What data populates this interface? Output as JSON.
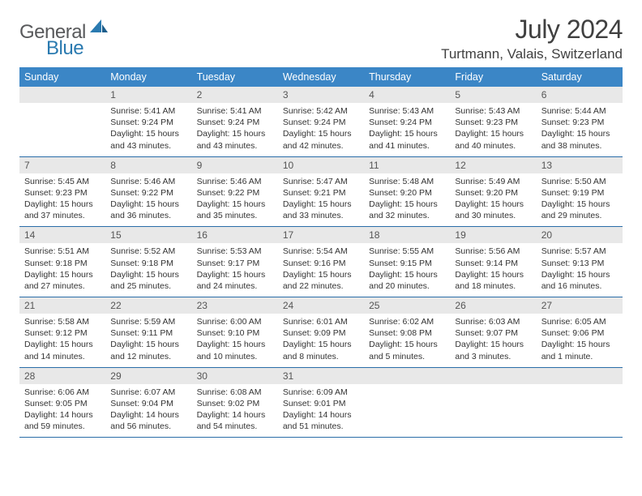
{
  "brand": {
    "part1": "General",
    "part2": "Blue"
  },
  "title": "July 2024",
  "location": "Turtmann, Valais, Switzerland",
  "colors": {
    "header_bg": "#3b86c6",
    "header_text": "#ffffff",
    "daynum_bg": "#e8e8e8",
    "border": "#2a6da8",
    "logo_gray": "#58595b",
    "logo_blue": "#2a7ab0",
    "page_bg": "#ffffff",
    "text": "#333333"
  },
  "weekdays": [
    "Sunday",
    "Monday",
    "Tuesday",
    "Wednesday",
    "Thursday",
    "Friday",
    "Saturday"
  ],
  "weeks": [
    [
      null,
      {
        "n": "1",
        "sr": "Sunrise: 5:41 AM",
        "ss": "Sunset: 9:24 PM",
        "dl": "Daylight: 15 hours and 43 minutes."
      },
      {
        "n": "2",
        "sr": "Sunrise: 5:41 AM",
        "ss": "Sunset: 9:24 PM",
        "dl": "Daylight: 15 hours and 43 minutes."
      },
      {
        "n": "3",
        "sr": "Sunrise: 5:42 AM",
        "ss": "Sunset: 9:24 PM",
        "dl": "Daylight: 15 hours and 42 minutes."
      },
      {
        "n": "4",
        "sr": "Sunrise: 5:43 AM",
        "ss": "Sunset: 9:24 PM",
        "dl": "Daylight: 15 hours and 41 minutes."
      },
      {
        "n": "5",
        "sr": "Sunrise: 5:43 AM",
        "ss": "Sunset: 9:23 PM",
        "dl": "Daylight: 15 hours and 40 minutes."
      },
      {
        "n": "6",
        "sr": "Sunrise: 5:44 AM",
        "ss": "Sunset: 9:23 PM",
        "dl": "Daylight: 15 hours and 38 minutes."
      }
    ],
    [
      {
        "n": "7",
        "sr": "Sunrise: 5:45 AM",
        "ss": "Sunset: 9:23 PM",
        "dl": "Daylight: 15 hours and 37 minutes."
      },
      {
        "n": "8",
        "sr": "Sunrise: 5:46 AM",
        "ss": "Sunset: 9:22 PM",
        "dl": "Daylight: 15 hours and 36 minutes."
      },
      {
        "n": "9",
        "sr": "Sunrise: 5:46 AM",
        "ss": "Sunset: 9:22 PM",
        "dl": "Daylight: 15 hours and 35 minutes."
      },
      {
        "n": "10",
        "sr": "Sunrise: 5:47 AM",
        "ss": "Sunset: 9:21 PM",
        "dl": "Daylight: 15 hours and 33 minutes."
      },
      {
        "n": "11",
        "sr": "Sunrise: 5:48 AM",
        "ss": "Sunset: 9:20 PM",
        "dl": "Daylight: 15 hours and 32 minutes."
      },
      {
        "n": "12",
        "sr": "Sunrise: 5:49 AM",
        "ss": "Sunset: 9:20 PM",
        "dl": "Daylight: 15 hours and 30 minutes."
      },
      {
        "n": "13",
        "sr": "Sunrise: 5:50 AM",
        "ss": "Sunset: 9:19 PM",
        "dl": "Daylight: 15 hours and 29 minutes."
      }
    ],
    [
      {
        "n": "14",
        "sr": "Sunrise: 5:51 AM",
        "ss": "Sunset: 9:18 PM",
        "dl": "Daylight: 15 hours and 27 minutes."
      },
      {
        "n": "15",
        "sr": "Sunrise: 5:52 AM",
        "ss": "Sunset: 9:18 PM",
        "dl": "Daylight: 15 hours and 25 minutes."
      },
      {
        "n": "16",
        "sr": "Sunrise: 5:53 AM",
        "ss": "Sunset: 9:17 PM",
        "dl": "Daylight: 15 hours and 24 minutes."
      },
      {
        "n": "17",
        "sr": "Sunrise: 5:54 AM",
        "ss": "Sunset: 9:16 PM",
        "dl": "Daylight: 15 hours and 22 minutes."
      },
      {
        "n": "18",
        "sr": "Sunrise: 5:55 AM",
        "ss": "Sunset: 9:15 PM",
        "dl": "Daylight: 15 hours and 20 minutes."
      },
      {
        "n": "19",
        "sr": "Sunrise: 5:56 AM",
        "ss": "Sunset: 9:14 PM",
        "dl": "Daylight: 15 hours and 18 minutes."
      },
      {
        "n": "20",
        "sr": "Sunrise: 5:57 AM",
        "ss": "Sunset: 9:13 PM",
        "dl": "Daylight: 15 hours and 16 minutes."
      }
    ],
    [
      {
        "n": "21",
        "sr": "Sunrise: 5:58 AM",
        "ss": "Sunset: 9:12 PM",
        "dl": "Daylight: 15 hours and 14 minutes."
      },
      {
        "n": "22",
        "sr": "Sunrise: 5:59 AM",
        "ss": "Sunset: 9:11 PM",
        "dl": "Daylight: 15 hours and 12 minutes."
      },
      {
        "n": "23",
        "sr": "Sunrise: 6:00 AM",
        "ss": "Sunset: 9:10 PM",
        "dl": "Daylight: 15 hours and 10 minutes."
      },
      {
        "n": "24",
        "sr": "Sunrise: 6:01 AM",
        "ss": "Sunset: 9:09 PM",
        "dl": "Daylight: 15 hours and 8 minutes."
      },
      {
        "n": "25",
        "sr": "Sunrise: 6:02 AM",
        "ss": "Sunset: 9:08 PM",
        "dl": "Daylight: 15 hours and 5 minutes."
      },
      {
        "n": "26",
        "sr": "Sunrise: 6:03 AM",
        "ss": "Sunset: 9:07 PM",
        "dl": "Daylight: 15 hours and 3 minutes."
      },
      {
        "n": "27",
        "sr": "Sunrise: 6:05 AM",
        "ss": "Sunset: 9:06 PM",
        "dl": "Daylight: 15 hours and 1 minute."
      }
    ],
    [
      {
        "n": "28",
        "sr": "Sunrise: 6:06 AM",
        "ss": "Sunset: 9:05 PM",
        "dl": "Daylight: 14 hours and 59 minutes."
      },
      {
        "n": "29",
        "sr": "Sunrise: 6:07 AM",
        "ss": "Sunset: 9:04 PM",
        "dl": "Daylight: 14 hours and 56 minutes."
      },
      {
        "n": "30",
        "sr": "Sunrise: 6:08 AM",
        "ss": "Sunset: 9:02 PM",
        "dl": "Daylight: 14 hours and 54 minutes."
      },
      {
        "n": "31",
        "sr": "Sunrise: 6:09 AM",
        "ss": "Sunset: 9:01 PM",
        "dl": "Daylight: 14 hours and 51 minutes."
      },
      null,
      null,
      null
    ]
  ]
}
